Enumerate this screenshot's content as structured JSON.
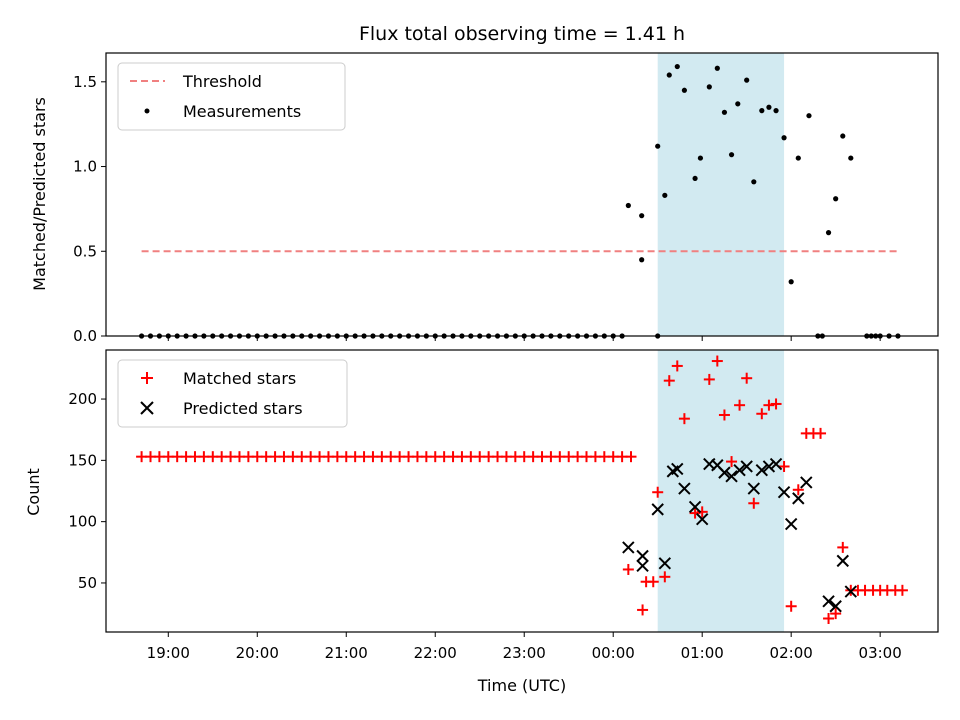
{
  "chart_data": {
    "type": "scatter",
    "title": "Flux total observing time = 1.41 h",
    "xlabel": "Time (UTC)",
    "x_unit": "hours",
    "x_ticks": [
      {
        "value": 19,
        "label": "19:00"
      },
      {
        "value": 20,
        "label": "20:00"
      },
      {
        "value": 21,
        "label": "21:00"
      },
      {
        "value": 22,
        "label": "22:00"
      },
      {
        "value": 23,
        "label": "23:00"
      },
      {
        "value": 24,
        "label": "00:00"
      },
      {
        "value": 25,
        "label": "01:00"
      },
      {
        "value": 26,
        "label": "02:00"
      },
      {
        "value": 27,
        "label": "03:00"
      }
    ],
    "xlim": [
      18.3,
      27.65
    ],
    "shaded_interval": {
      "x0": 24.5,
      "x1": 25.92,
      "color": "#add8e6"
    },
    "top": {
      "ylabel": "Matched/Predicted stars",
      "ylim": [
        0,
        1.67
      ],
      "y_ticks": [
        {
          "value": 0.0,
          "label": "0.0"
        },
        {
          "value": 0.5,
          "label": "0.5"
        },
        {
          "value": 1.0,
          "label": "1.0"
        },
        {
          "value": 1.5,
          "label": "1.5"
        }
      ],
      "threshold": {
        "name": "Threshold",
        "value": 0.5,
        "x0": 18.7,
        "x1": 27.2,
        "color": "#f08080"
      },
      "measurements": {
        "name": "Measurements",
        "color": "#000000",
        "zero_x": [
          18.7,
          18.8,
          18.9,
          19.0,
          19.1,
          19.2,
          19.3,
          19.4,
          19.5,
          19.6,
          19.7,
          19.8,
          19.9,
          20.0,
          20.1,
          20.2,
          20.3,
          20.4,
          20.5,
          20.6,
          20.7,
          20.8,
          20.9,
          21.0,
          21.1,
          21.2,
          21.3,
          21.4,
          21.5,
          21.6,
          21.7,
          21.8,
          21.9,
          22.0,
          22.1,
          22.2,
          22.3,
          22.4,
          22.5,
          22.6,
          22.7,
          22.8,
          22.9,
          23.0,
          23.1,
          23.2,
          23.3,
          23.4,
          23.5,
          23.6,
          23.7,
          23.8,
          23.9,
          24.0,
          24.1,
          24.5,
          26.3,
          26.35,
          26.85,
          26.9,
          26.95,
          27.0,
          27.1,
          27.2
        ],
        "points": [
          [
            24.17,
            0.77
          ],
          [
            24.32,
            0.71
          ],
          [
            24.32,
            0.45
          ],
          [
            24.5,
            1.12
          ],
          [
            24.58,
            0.83
          ],
          [
            24.63,
            1.54
          ],
          [
            24.72,
            1.59
          ],
          [
            24.8,
            1.45
          ],
          [
            24.92,
            0.93
          ],
          [
            24.98,
            1.05
          ],
          [
            25.08,
            1.47
          ],
          [
            25.17,
            1.58
          ],
          [
            25.25,
            1.32
          ],
          [
            25.33,
            1.07
          ],
          [
            25.4,
            1.37
          ],
          [
            25.5,
            1.51
          ],
          [
            25.58,
            0.91
          ],
          [
            25.67,
            1.33
          ],
          [
            25.75,
            1.35
          ],
          [
            25.83,
            1.33
          ],
          [
            25.92,
            1.17
          ],
          [
            26.0,
            0.32
          ],
          [
            26.08,
            1.05
          ],
          [
            26.2,
            1.3
          ],
          [
            26.42,
            0.61
          ],
          [
            26.5,
            0.81
          ],
          [
            26.58,
            1.18
          ],
          [
            26.67,
            1.05
          ]
        ]
      },
      "legend_position": "upper left"
    },
    "bottom": {
      "ylabel": "Count",
      "ylim": [
        10,
        240
      ],
      "y_ticks": [
        {
          "value": 50,
          "label": "50"
        },
        {
          "value": 100,
          "label": "100"
        },
        {
          "value": 150,
          "label": "150"
        },
        {
          "value": 200,
          "label": "200"
        }
      ],
      "series": [
        {
          "name": "Matched stars",
          "marker": "+",
          "color": "#ff0000",
          "constant_run": {
            "x_start": 18.7,
            "x_end": 24.2,
            "step": 0.1,
            "value": 153
          },
          "points": [
            [
              24.17,
              61
            ],
            [
              24.33,
              28
            ],
            [
              24.37,
              51
            ],
            [
              24.45,
              51
            ],
            [
              24.5,
              124
            ],
            [
              24.58,
              55
            ],
            [
              24.63,
              215
            ],
            [
              24.72,
              227
            ],
            [
              24.8,
              184
            ],
            [
              24.92,
              107
            ],
            [
              25.0,
              108
            ],
            [
              25.08,
              216
            ],
            [
              25.17,
              231
            ],
            [
              25.25,
              187
            ],
            [
              25.33,
              149
            ],
            [
              25.42,
              195
            ],
            [
              25.5,
              217
            ],
            [
              25.58,
              115
            ],
            [
              25.67,
              188
            ],
            [
              25.75,
              195
            ],
            [
              25.83,
              196
            ],
            [
              25.92,
              145
            ],
            [
              26.0,
              31
            ],
            [
              26.08,
              126
            ],
            [
              26.17,
              172
            ],
            [
              26.25,
              172
            ],
            [
              26.33,
              172
            ],
            [
              26.42,
              21
            ],
            [
              26.5,
              25
            ],
            [
              26.58,
              79
            ],
            [
              26.67,
              44
            ],
            [
              26.75,
              44
            ],
            [
              26.83,
              44
            ],
            [
              26.92,
              44
            ],
            [
              27.0,
              44
            ],
            [
              27.08,
              44
            ],
            [
              27.17,
              44
            ],
            [
              27.25,
              44
            ]
          ]
        },
        {
          "name": "Predicted stars",
          "marker": "x",
          "color": "#000000",
          "points": [
            [
              24.17,
              79
            ],
            [
              24.33,
              72
            ],
            [
              24.33,
              64
            ],
            [
              24.5,
              110
            ],
            [
              24.58,
              66
            ],
            [
              24.67,
              141
            ],
            [
              24.72,
              143
            ],
            [
              24.8,
              127
            ],
            [
              24.92,
              112
            ],
            [
              25.0,
              102
            ],
            [
              25.08,
              147
            ],
            [
              25.17,
              146
            ],
            [
              25.25,
              140
            ],
            [
              25.33,
              137
            ],
            [
              25.42,
              142
            ],
            [
              25.5,
              145
            ],
            [
              25.58,
              127
            ],
            [
              25.67,
              142
            ],
            [
              25.75,
              145
            ],
            [
              25.83,
              147
            ],
            [
              25.92,
              124
            ],
            [
              26.0,
              98
            ],
            [
              26.08,
              119
            ],
            [
              26.17,
              132
            ],
            [
              26.42,
              35
            ],
            [
              26.5,
              31
            ],
            [
              26.58,
              68
            ],
            [
              26.67,
              43
            ]
          ]
        }
      ],
      "legend_position": "upper left"
    }
  }
}
